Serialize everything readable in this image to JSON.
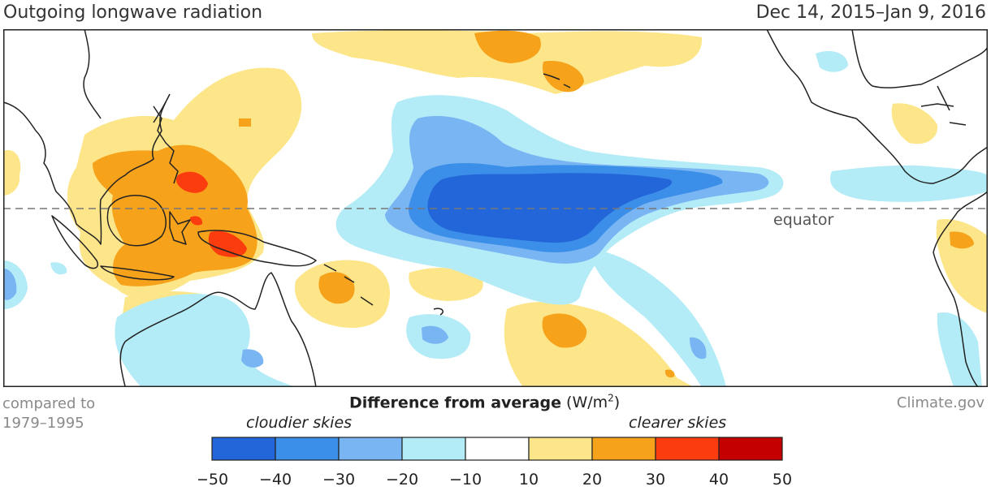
{
  "header": {
    "title": "Outgoing longwave radiation",
    "date_range": "Dec 14, 2015–Jan 9, 2016"
  },
  "map": {
    "equator_label": "equator"
  },
  "footer": {
    "compared_line1": "compared to",
    "compared_line2": "1979–1995",
    "source": "Climate.gov"
  },
  "legend": {
    "title_bold": "Difference from average",
    "units_prefix": "(W/m",
    "units_sup": "2",
    "units_suffix": ")",
    "left_label": "cloudier skies",
    "right_label": "clearer skies",
    "bins": [
      {
        "label": "-50 to -40",
        "color": "#2366d9"
      },
      {
        "label": "-40 to -30",
        "color": "#3c8fe8"
      },
      {
        "label": "-30 to -20",
        "color": "#79b4f3"
      },
      {
        "label": "-20 to -10",
        "color": "#b3ecf6"
      },
      {
        "label": "-10 to 10",
        "color": "#ffffff"
      },
      {
        "label": "10 to 20",
        "color": "#fde68a"
      },
      {
        "label": "20 to 30",
        "color": "#f7a21b"
      },
      {
        "label": "30 to 40",
        "color": "#fb3c0e"
      },
      {
        "label": "40 to 50",
        "color": "#c40000"
      }
    ],
    "ticks": [
      "−50",
      "−40",
      "−30",
      "−20",
      "−10",
      "10",
      "20",
      "30",
      "40",
      "50"
    ]
  }
}
